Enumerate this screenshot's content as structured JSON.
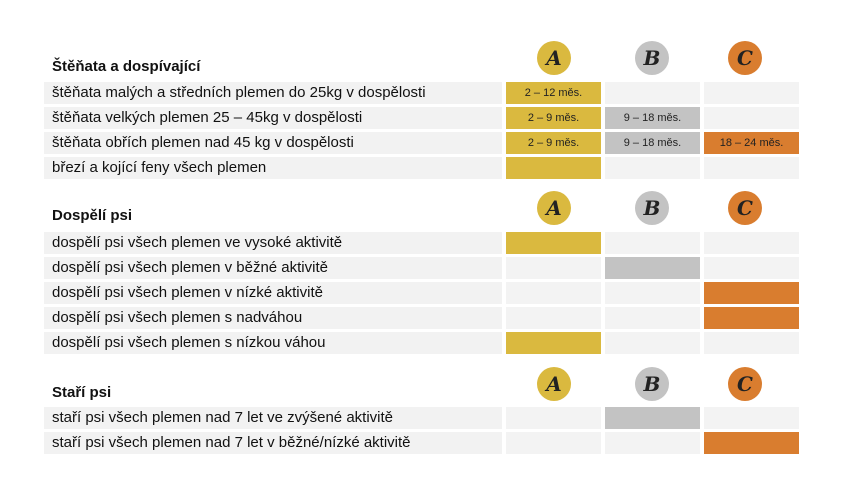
{
  "colors": {
    "A": "#dab93f",
    "B": "#c3c3c3",
    "C": "#d97d2f",
    "empty": "#f3f3f3"
  },
  "columns": [
    "A",
    "B",
    "C"
  ],
  "sections": [
    {
      "title": "Štěňata a dospívající",
      "rows": [
        {
          "label": "štěňata malých a středních plemen do 25kg v dospělosti",
          "cells": [
            "2 – 12 měs.",
            null,
            null
          ]
        },
        {
          "label": "štěňata velkých plemen 25 – 45kg v dospělosti",
          "cells": [
            "2 – 9 měs.",
            "9 – 18 měs.",
            null
          ]
        },
        {
          "label": "štěňata obřích plemen nad 45 kg v dospělosti",
          "cells": [
            "2 – 9 měs.",
            "9 – 18 měs.",
            "18 – 24 měs."
          ]
        },
        {
          "label": "březí a kojící feny všech plemen",
          "cells": [
            "",
            null,
            null
          ]
        }
      ]
    },
    {
      "title": "Dospělí psi",
      "rows": [
        {
          "label": "dospělí psi všech plemen ve vysoké aktivitě",
          "cells": [
            "",
            null,
            null
          ]
        },
        {
          "label": "dospělí psi všech plemen v běžné aktivitě",
          "cells": [
            null,
            "",
            null
          ]
        },
        {
          "label": "dospělí psi všech plemen v nízké aktivitě",
          "cells": [
            null,
            null,
            ""
          ]
        },
        {
          "label": "dospělí psi všech plemen s nadváhou",
          "cells": [
            null,
            null,
            ""
          ]
        },
        {
          "label": "dospělí psi všech plemen s nízkou váhou",
          "cells": [
            "",
            null,
            null
          ]
        }
      ]
    },
    {
      "title": "Staří psi",
      "rows": [
        {
          "label": "staří psi všech plemen nad 7 let ve zvýšené aktivitě",
          "cells": [
            null,
            "",
            null
          ]
        },
        {
          "label": "staří psi všech plemen nad 7 let v běžné/nízké aktivitě",
          "cells": [
            null,
            null,
            ""
          ]
        }
      ]
    }
  ]
}
